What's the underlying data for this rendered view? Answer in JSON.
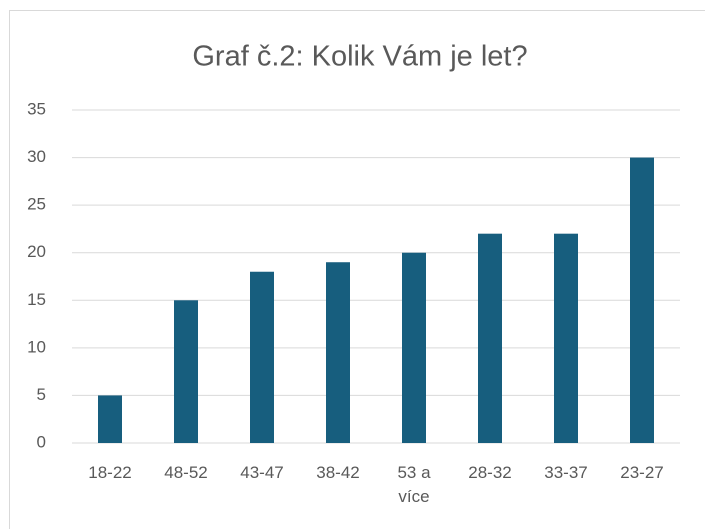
{
  "chart_data": {
    "type": "bar",
    "title": "Graf č.2: Kolik Vám je let?",
    "categories": [
      "18-22",
      "48-52",
      "43-47",
      "38-42",
      "53 a více",
      "28-32",
      "33-37",
      "23-27"
    ],
    "values": [
      5,
      15,
      18,
      19,
      20,
      22,
      22,
      30
    ],
    "color": "#175e7e",
    "ylim": [
      0,
      35
    ],
    "yticks": [
      0,
      5,
      10,
      15,
      20,
      25,
      30,
      35
    ],
    "grid": true
  }
}
